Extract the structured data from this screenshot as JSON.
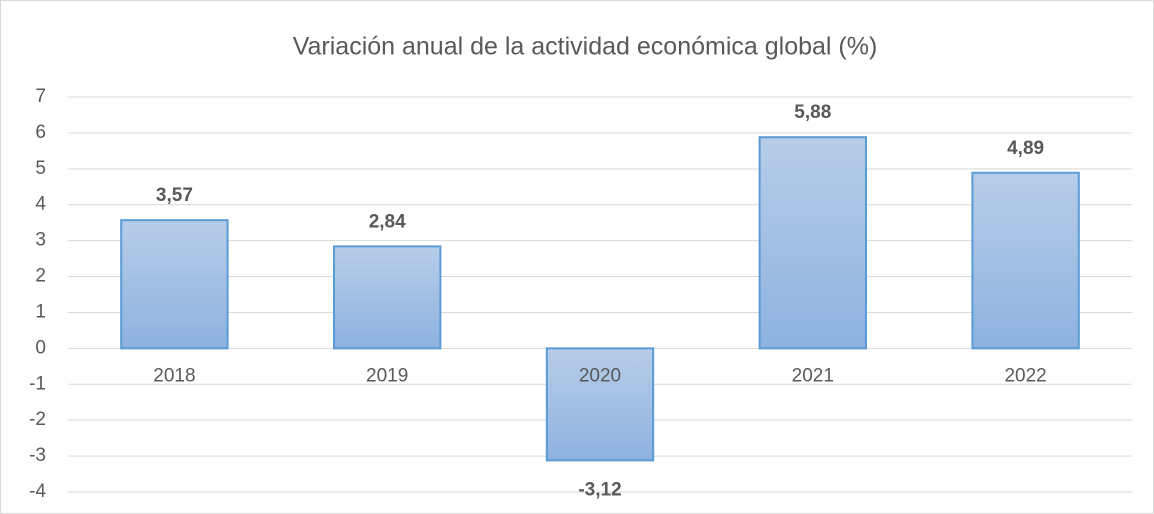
{
  "chart_data": {
    "type": "bar",
    "title": "Variación anual de la actividad económica global (%)",
    "categories": [
      "2018",
      "2019",
      "2020",
      "2021",
      "2022"
    ],
    "values": [
      3.57,
      2.84,
      -3.12,
      5.88,
      4.89
    ],
    "value_labels": [
      "3,57",
      "2,84",
      "-3,12",
      "5,88",
      "4,89"
    ],
    "color": "#5b9bd5",
    "ylim": [
      -4,
      7
    ],
    "yticks": [
      -4,
      -3,
      -2,
      -1,
      0,
      1,
      2,
      3,
      4,
      5,
      6,
      7
    ],
    "grid": true
  }
}
